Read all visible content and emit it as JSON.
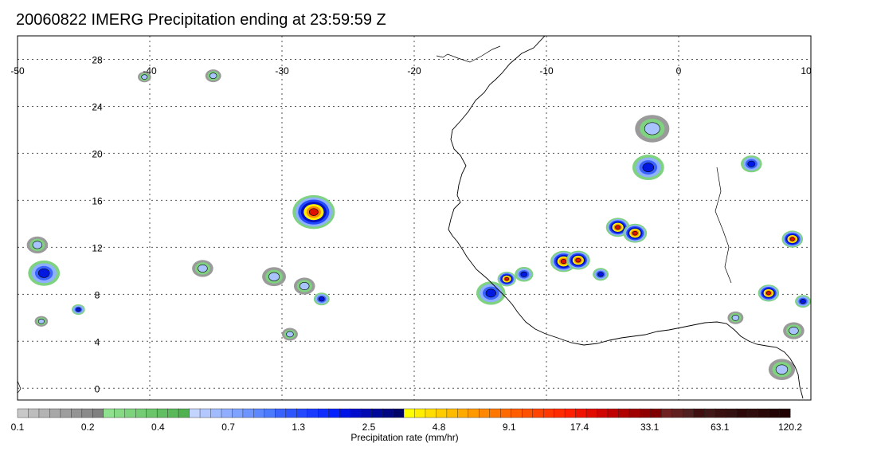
{
  "title": "20060822 IMERG Precipitation ending at 23:59:59 Z",
  "map": {
    "lon_range": [
      -50,
      10
    ],
    "lat_range": [
      -1,
      30
    ],
    "lon_ticks": [
      "-50",
      "-40",
      "-30",
      "-20",
      "-10",
      "0",
      "10"
    ],
    "lat_ticks": [
      "0",
      "4",
      "8",
      "12",
      "16",
      "20",
      "24",
      "28"
    ],
    "gridlines": true,
    "coastline_color": "#000000"
  },
  "colorbar": {
    "label": "Precipitation rate (mm/hr)",
    "tick_labels": [
      "0.1",
      "0.2",
      "0.4",
      "0.7",
      "1.3",
      "2.5",
      "4.8",
      "9.1",
      "17.4",
      "33.1",
      "63.1",
      "120.2"
    ],
    "colors": [
      "#c8c8c8",
      "#bdbdbd",
      "#b3b3b3",
      "#a8a8a8",
      "#9e9e9e",
      "#949494",
      "#8a8a8a",
      "#808080",
      "#8fe08f",
      "#86da86",
      "#7dd37d",
      "#74cc74",
      "#6bc56b",
      "#62be62",
      "#59b859",
      "#50b150",
      "#c3d5ff",
      "#b2c8ff",
      "#a1bbff",
      "#90aeff",
      "#7fa1ff",
      "#6e94ff",
      "#5d87ff",
      "#4c7aff",
      "#3a62ff",
      "#2f55ff",
      "#2448ff",
      "#1a3bff",
      "#0f2eff",
      "#0521ff",
      "#0014e6",
      "#000ccc",
      "#000ab3",
      "#00089a",
      "#000681",
      "#000468",
      "#ffff00",
      "#ffee00",
      "#ffdd00",
      "#ffcc00",
      "#ffbb00",
      "#ffaa00",
      "#ff9900",
      "#ff8800",
      "#ff7700",
      "#ff6a00",
      "#ff5d00",
      "#ff5000",
      "#ff4400",
      "#ff3800",
      "#ff2c00",
      "#ff2000",
      "#f01400",
      "#e00c00",
      "#d00400",
      "#c00000",
      "#b00000",
      "#a00000",
      "#900000",
      "#800000",
      "#702020",
      "#602020",
      "#502020",
      "#401010",
      "#401818",
      "#3a1010",
      "#341010",
      "#2e0808",
      "#300c0c",
      "#2a0808",
      "#240404",
      "#200000"
    ]
  },
  "precip_cells": [
    {
      "lon": -27.6,
      "lat": 15.0,
      "r": 1.6,
      "level": "high"
    },
    {
      "lon": -8.7,
      "lat": 10.8,
      "r": 1.0,
      "level": "high"
    },
    {
      "lon": -7.6,
      "lat": 10.9,
      "r": 0.9,
      "level": "high"
    },
    {
      "lon": -4.6,
      "lat": 13.7,
      "r": 0.9,
      "level": "high"
    },
    {
      "lon": -3.3,
      "lat": 13.2,
      "r": 0.9,
      "level": "high"
    },
    {
      "lon": 8.6,
      "lat": 12.7,
      "r": 0.8,
      "level": "high"
    },
    {
      "lon": -13.0,
      "lat": 9.3,
      "r": 0.7,
      "level": "high"
    },
    {
      "lon": 6.8,
      "lat": 8.1,
      "r": 0.8,
      "level": "high"
    },
    {
      "lon": -48.0,
      "lat": 9.8,
      "r": 1.2,
      "level": "mid"
    },
    {
      "lon": -27.0,
      "lat": 7.6,
      "r": 0.6,
      "level": "mid"
    },
    {
      "lon": -28.3,
      "lat": 8.7,
      "r": 0.8,
      "level": "low"
    },
    {
      "lon": -14.2,
      "lat": 8.1,
      "r": 1.1,
      "level": "mid"
    },
    {
      "lon": -5.9,
      "lat": 9.7,
      "r": 0.6,
      "level": "mid"
    },
    {
      "lon": -2.3,
      "lat": 18.8,
      "r": 1.2,
      "level": "mid"
    },
    {
      "lon": -2.0,
      "lat": 22.1,
      "r": 1.3,
      "level": "low"
    },
    {
      "lon": 5.5,
      "lat": 19.1,
      "r": 0.8,
      "level": "mid"
    },
    {
      "lon": 9.4,
      "lat": 7.4,
      "r": 0.6,
      "level": "mid"
    },
    {
      "lon": -40.4,
      "lat": 26.5,
      "r": 0.5,
      "level": "low"
    },
    {
      "lon": -35.2,
      "lat": 26.6,
      "r": 0.6,
      "level": "low"
    },
    {
      "lon": -36.0,
      "lat": 10.2,
      "r": 0.8,
      "level": "low"
    },
    {
      "lon": -30.6,
      "lat": 9.5,
      "r": 0.9,
      "level": "low"
    },
    {
      "lon": -48.2,
      "lat": 5.7,
      "r": 0.5,
      "level": "low"
    },
    {
      "lon": -45.4,
      "lat": 6.7,
      "r": 0.5,
      "level": "mid"
    },
    {
      "lon": -29.4,
      "lat": 4.6,
      "r": 0.6,
      "level": "low"
    },
    {
      "lon": 4.3,
      "lat": 6.0,
      "r": 0.6,
      "level": "low"
    },
    {
      "lon": 8.7,
      "lat": 4.9,
      "r": 0.8,
      "level": "low"
    },
    {
      "lon": 7.8,
      "lat": 1.6,
      "r": 1.0,
      "level": "low"
    },
    {
      "lon": -11.7,
      "lat": 9.7,
      "r": 0.7,
      "level": "mid"
    },
    {
      "lon": -48.5,
      "lat": 12.2,
      "r": 0.8,
      "level": "low"
    }
  ]
}
